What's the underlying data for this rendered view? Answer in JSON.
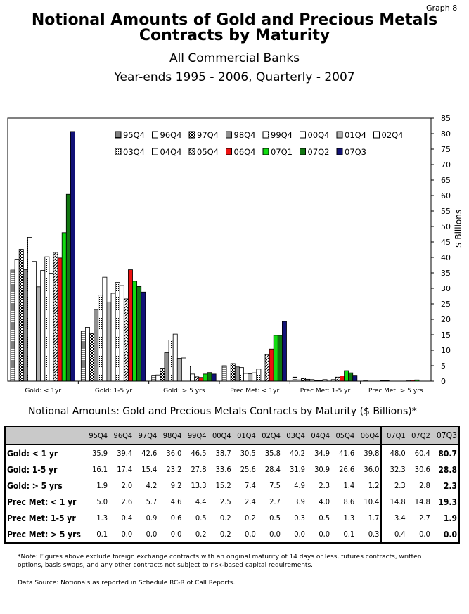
{
  "header": {
    "graph_label": "Graph 8",
    "title_line1": "Notional Amounts of Gold and Precious Metals",
    "title_line2": "Contracts by Maturity",
    "subtitle1": "All Commercial Banks",
    "subtitle2": "Year-ends 1995 - 2006, Quarterly - 2007"
  },
  "chart_data": {
    "type": "bar",
    "title": "Notional Amounts of Gold and Precious Metals Contracts by Maturity",
    "ylabel": "$ Billions",
    "ylim": [
      0,
      85
    ],
    "yticks": [
      0,
      5,
      10,
      15,
      20,
      25,
      30,
      35,
      40,
      45,
      50,
      55,
      60,
      65,
      70,
      75,
      80,
      85
    ],
    "categories": [
      "Gold: < 1yr",
      "Gold: 1-5 yr",
      "Gold: > 5 yrs",
      "Prec Met: < 1yr",
      "Prec Met: 1-5 yr",
      "Prec Met: > 5 yrs"
    ],
    "legend_position": "top-center",
    "series": [
      {
        "name": "95Q4",
        "color": "#ffffff",
        "pattern": "horiz",
        "values": [
          35.9,
          16.1,
          1.9,
          5.0,
          1.3,
          0.1
        ]
      },
      {
        "name": "96Q4",
        "color": "#ffffff",
        "pattern": "none",
        "values": [
          39.4,
          17.4,
          2.0,
          2.6,
          0.4,
          0.0
        ]
      },
      {
        "name": "97Q4",
        "color": "#ffffff",
        "pattern": "check",
        "values": [
          42.6,
          15.4,
          4.2,
          5.7,
          0.9,
          0.0
        ]
      },
      {
        "name": "98Q4",
        "color": "#909090",
        "pattern": "none",
        "values": [
          36.0,
          23.2,
          9.2,
          4.6,
          0.6,
          0.0
        ]
      },
      {
        "name": "99Q4",
        "color": "#ffffff",
        "pattern": "dots",
        "values": [
          46.5,
          27.8,
          13.3,
          4.4,
          0.5,
          0.2
        ]
      },
      {
        "name": "00Q4",
        "color": "#ffffff",
        "pattern": "none",
        "values": [
          38.7,
          33.6,
          15.2,
          2.5,
          0.2,
          0.2
        ]
      },
      {
        "name": "01Q4",
        "color": "#b0b0b0",
        "pattern": "none",
        "values": [
          30.5,
          25.6,
          7.4,
          2.4,
          0.2,
          0.0
        ]
      },
      {
        "name": "02Q4",
        "color": "#ffffff",
        "pattern": "none",
        "values": [
          35.8,
          28.4,
          7.5,
          2.7,
          0.5,
          0.0
        ]
      },
      {
        "name": "03Q4",
        "color": "#ffffff",
        "pattern": "dots",
        "values": [
          40.2,
          31.9,
          4.9,
          3.9,
          0.3,
          0.0
        ]
      },
      {
        "name": "04Q4",
        "color": "#ffffff",
        "pattern": "none",
        "values": [
          34.9,
          30.9,
          2.3,
          4.0,
          0.5,
          0.0
        ]
      },
      {
        "name": "05Q4",
        "color": "#ffffff",
        "pattern": "diag",
        "values": [
          41.6,
          26.6,
          1.4,
          8.6,
          1.3,
          0.1
        ]
      },
      {
        "name": "06Q4",
        "color": "#ee1111",
        "pattern": "none",
        "values": [
          39.8,
          36.0,
          1.2,
          10.4,
          1.7,
          0.3
        ]
      },
      {
        "name": "07Q1",
        "color": "#11dd11",
        "pattern": "none",
        "values": [
          48.0,
          32.3,
          2.3,
          14.8,
          3.4,
          0.4
        ]
      },
      {
        "name": "07Q2",
        "color": "#117711",
        "pattern": "none",
        "values": [
          60.4,
          30.6,
          2.8,
          14.8,
          2.7,
          0.0
        ]
      },
      {
        "name": "07Q3",
        "color": "#111177",
        "pattern": "none",
        "values": [
          80.7,
          28.8,
          2.3,
          19.3,
          1.9,
          0.0
        ]
      }
    ]
  },
  "table": {
    "title": "Notional Amounts:  Gold and Precious Metals Contracts by Maturity ($ Billions)*",
    "columns": [
      "95Q4",
      "96Q4",
      "97Q4",
      "98Q4",
      "99Q4",
      "00Q4",
      "01Q4",
      "02Q4",
      "03Q4",
      "04Q4",
      "05Q4",
      "06Q4",
      "07Q1",
      "07Q2",
      "07Q3"
    ],
    "rows": [
      {
        "label": "Gold: < 1 yr",
        "values": [
          "35.9",
          "39.4",
          "42.6",
          "36.0",
          "46.5",
          "38.7",
          "30.5",
          "35.8",
          "40.2",
          "34.9",
          "41.6",
          "39.8",
          "48.0",
          "60.4",
          "80.7"
        ]
      },
      {
        "label": "Gold: 1-5 yr",
        "values": [
          "16.1",
          "17.4",
          "15.4",
          "23.2",
          "27.8",
          "33.6",
          "25.6",
          "28.4",
          "31.9",
          "30.9",
          "26.6",
          "36.0",
          "32.3",
          "30.6",
          "28.8"
        ]
      },
      {
        "label": "Gold: > 5 yrs",
        "values": [
          "1.9",
          "2.0",
          "4.2",
          "9.2",
          "13.3",
          "15.2",
          "7.4",
          "7.5",
          "4.9",
          "2.3",
          "1.4",
          "1.2",
          "2.3",
          "2.8",
          "2.3"
        ]
      },
      {
        "label": "Prec Met: < 1 yr",
        "values": [
          "5.0",
          "2.6",
          "5.7",
          "4.6",
          "4.4",
          "2.5",
          "2.4",
          "2.7",
          "3.9",
          "4.0",
          "8.6",
          "10.4",
          "14.8",
          "14.8",
          "19.3"
        ]
      },
      {
        "label": "Prec Met: 1-5 yr",
        "values": [
          "1.3",
          "0.4",
          "0.9",
          "0.6",
          "0.5",
          "0.2",
          "0.2",
          "0.5",
          "0.3",
          "0.5",
          "1.3",
          "1.7",
          "3.4",
          "2.7",
          "1.9"
        ]
      },
      {
        "label": "Prec Met: > 5 yrs",
        "values": [
          "0.1",
          "0.0",
          "0.0",
          "0.0",
          "0.2",
          "0.2",
          "0.0",
          "0.0",
          "0.0",
          "0.0",
          "0.1",
          "0.3",
          "0.4",
          "0.0",
          "0.0"
        ]
      }
    ]
  },
  "footer": {
    "note": "*Note:  Figures above exclude foreign exchange contracts with an original maturity of 14 days or less, futures contracts, written options, basis swaps, and any other contracts not subject to risk-based capital requirements.",
    "source": "Data Source: Notionals as reported in Schedule RC-R of Call Reports."
  }
}
